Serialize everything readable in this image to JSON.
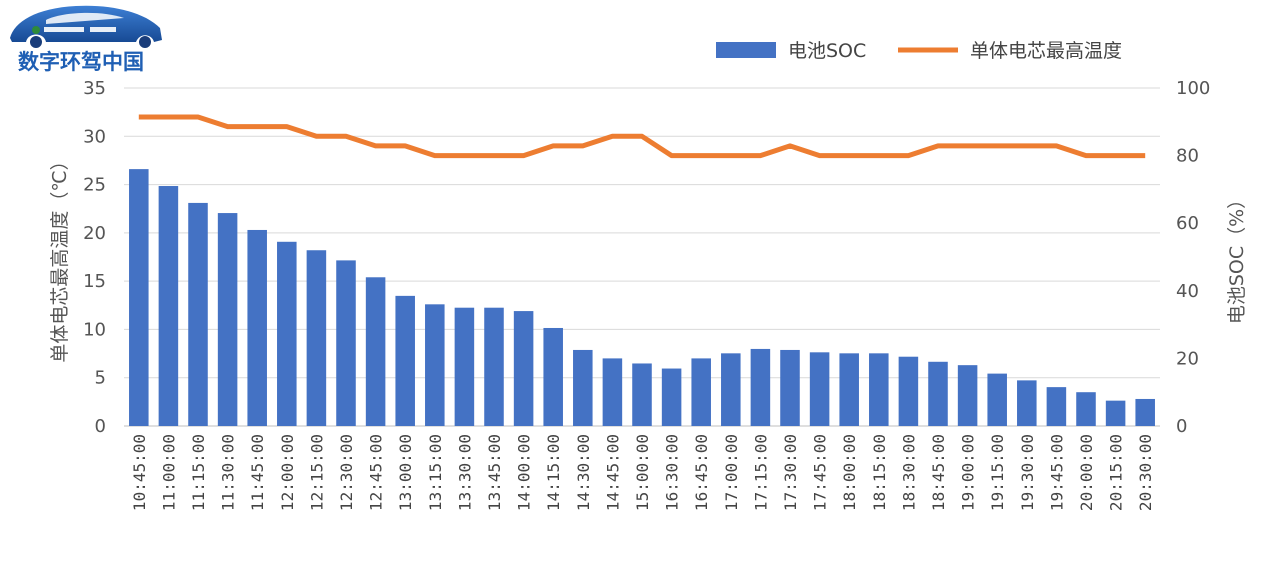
{
  "logo": {
    "text": "数字环驾中国"
  },
  "chart_data": {
    "type": "bar+line",
    "categories": [
      "10:45:00",
      "11:00:00",
      "11:15:00",
      "11:30:00",
      "11:45:00",
      "12:00:00",
      "12:15:00",
      "12:30:00",
      "12:45:00",
      "13:00:00",
      "13:15:00",
      "13:30:00",
      "13:45:00",
      "14:00:00",
      "14:15:00",
      "14:30:00",
      "14:45:00",
      "15:00:00",
      "16:30:00",
      "16:45:00",
      "17:00:00",
      "17:15:00",
      "17:30:00",
      "17:45:00",
      "18:00:00",
      "18:15:00",
      "18:30:00",
      "18:45:00",
      "19:00:00",
      "19:15:00",
      "19:30:00",
      "19:45:00",
      "20:00:00",
      "20:15:00",
      "20:30:00"
    ],
    "series": [
      {
        "name": "电池SOC",
        "type": "bar",
        "axis": "right",
        "color": "#4472c4",
        "values": [
          76,
          71,
          66,
          63,
          58,
          54.5,
          52,
          49,
          44,
          38.5,
          36,
          35,
          35,
          34,
          29,
          22.5,
          20,
          18.5,
          17,
          20,
          21.5,
          22.8,
          22.5,
          21.8,
          21.5,
          21.5,
          20.5,
          19,
          18,
          15.5,
          13.5,
          11.5,
          10,
          7.5,
          8
        ]
      },
      {
        "name": "单体电芯最高温度",
        "type": "line",
        "axis": "left",
        "color": "#ed7d31",
        "values": [
          32,
          32,
          32,
          31,
          31,
          31,
          30,
          30,
          29,
          29,
          28,
          28,
          28,
          28,
          29,
          29,
          30,
          30,
          28,
          28,
          28,
          28,
          29,
          28,
          28,
          28,
          28,
          29,
          29,
          29,
          29,
          29,
          28,
          28,
          28
        ]
      }
    ],
    "y_left": {
      "label": "单体电芯最高温度（℃）",
      "min": 0,
      "max": 35,
      "ticks": [
        0,
        5,
        10,
        15,
        20,
        25,
        30,
        35
      ]
    },
    "y_right": {
      "label": "电池SOC（%）",
      "min": 0,
      "max": 100,
      "ticks": [
        0,
        20,
        40,
        60,
        80,
        100
      ]
    },
    "grid": true,
    "legend": "top-right"
  }
}
